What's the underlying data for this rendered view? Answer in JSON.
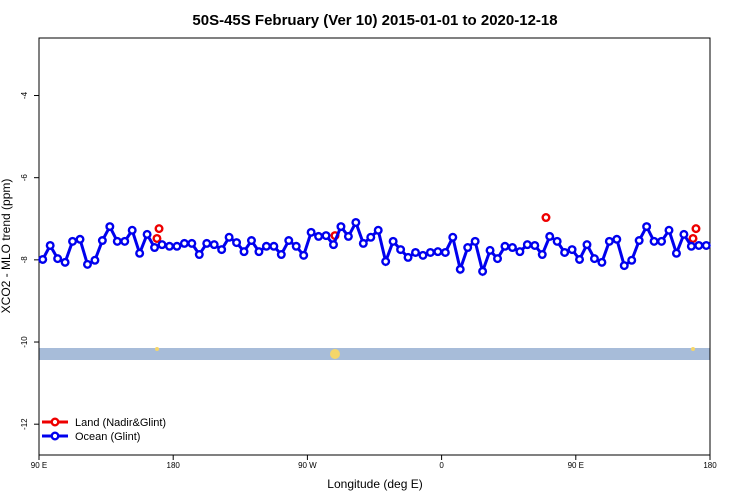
{
  "chart_data": {
    "type": "scatter",
    "title": "50S-45S February (Ver 10)   2015-01-01 to 2020-12-18",
    "xlabel": "Longitude (deg E)",
    "ylabel": "XCO2 - MLO trend (ppm)",
    "xlim": [
      90,
      540
    ],
    "xticks": [
      {
        "value": 90,
        "label": "90 E"
      },
      {
        "value": 180,
        "label": "180"
      },
      {
        "value": 270,
        "label": "90 W"
      },
      {
        "value": 360,
        "label": "0"
      },
      {
        "value": 450,
        "label": "90 E"
      },
      {
        "value": 540,
        "label": "180"
      }
    ],
    "ylim": [
      -12.75,
      -2.6
    ],
    "yticks": [
      -12,
      -10,
      -8,
      -6,
      -4
    ],
    "legend": "bottom-left",
    "series": [
      {
        "name": "Land (Nadir&Glint)",
        "color": "#ee0000",
        "x": [
          170.5,
          169.1,
          288.5,
          430,
          530.6,
          528.6
        ],
        "values": [
          -7.24,
          -7.48,
          -7.41,
          -6.97,
          -7.24,
          -7.48
        ]
      },
      {
        "name": "Ocean (Glint)",
        "color": "#0000ee",
        "x": [
          92.5,
          97.5,
          102.5,
          107.5,
          112.5,
          117.5,
          122.5,
          127.5,
          132.5,
          137.5,
          142.5,
          147.5,
          152.5,
          157.5,
          162.5,
          167.5,
          172.5,
          177.5,
          182.5,
          187.5,
          192.5,
          197.5,
          202.5,
          207.5,
          212.5,
          217.5,
          222.5,
          227.5,
          232.5,
          237.5,
          242.5,
          247.5,
          252.5,
          257.5,
          262.5,
          267.5,
          272.5,
          277.5,
          282.5,
          287.5,
          292.5,
          297.5,
          302.5,
          307.5,
          312.5,
          317.5,
          322.5,
          327.5,
          332.5,
          337.5,
          342.5,
          347.5,
          352.5,
          357.5,
          362.5,
          367.5,
          372.5,
          377.5,
          382.5,
          387.5,
          392.5,
          397.5,
          402.5,
          407.5,
          412.5,
          417.5,
          422.5,
          427.5,
          432.5,
          437.5,
          442.5,
          447.5,
          452.5,
          457.5,
          462.5,
          467.5,
          472.5,
          477.5,
          482.5,
          487.5,
          492.5,
          497.5,
          502.5,
          507.5,
          512.5,
          517.5,
          522.5,
          527.5,
          532.5,
          537.5
        ],
        "values": [
          -7.99,
          -7.65,
          -7.97,
          -8.06,
          -7.55,
          -7.5,
          -8.11,
          -8.01,
          -7.53,
          -7.19,
          -7.55,
          -7.55,
          -7.28,
          -7.84,
          -7.38,
          -7.7,
          -7.63,
          -7.67,
          -7.67,
          -7.6,
          -7.6,
          -7.87,
          -7.6,
          -7.63,
          -7.75,
          -7.45,
          -7.58,
          -7.8,
          -7.53,
          -7.8,
          -7.67,
          -7.67,
          -7.87,
          -7.53,
          -7.67,
          -7.89,
          -7.33,
          -7.43,
          -7.41,
          -7.63,
          -7.19,
          -7.43,
          -7.09,
          -7.6,
          -7.45,
          -7.28,
          -8.04,
          -7.55,
          -7.75,
          -7.94,
          -7.82,
          -7.89,
          -7.82,
          -7.8,
          -7.82,
          -7.45,
          -8.23,
          -7.7,
          -7.55,
          -8.28,
          -7.77,
          -7.97,
          -7.67,
          -7.7,
          -7.8,
          -7.63,
          -7.65,
          -7.87,
          -7.43,
          -7.55,
          -7.82,
          -7.75,
          -7.99,
          -7.63,
          -7.97,
          -8.06,
          -7.55,
          -7.5,
          -8.14,
          -8.01,
          -7.53,
          -7.19,
          -7.55,
          -7.55,
          -7.28,
          -7.84,
          -7.38,
          -7.67,
          -7.65,
          -7.65
        ]
      }
    ]
  }
}
